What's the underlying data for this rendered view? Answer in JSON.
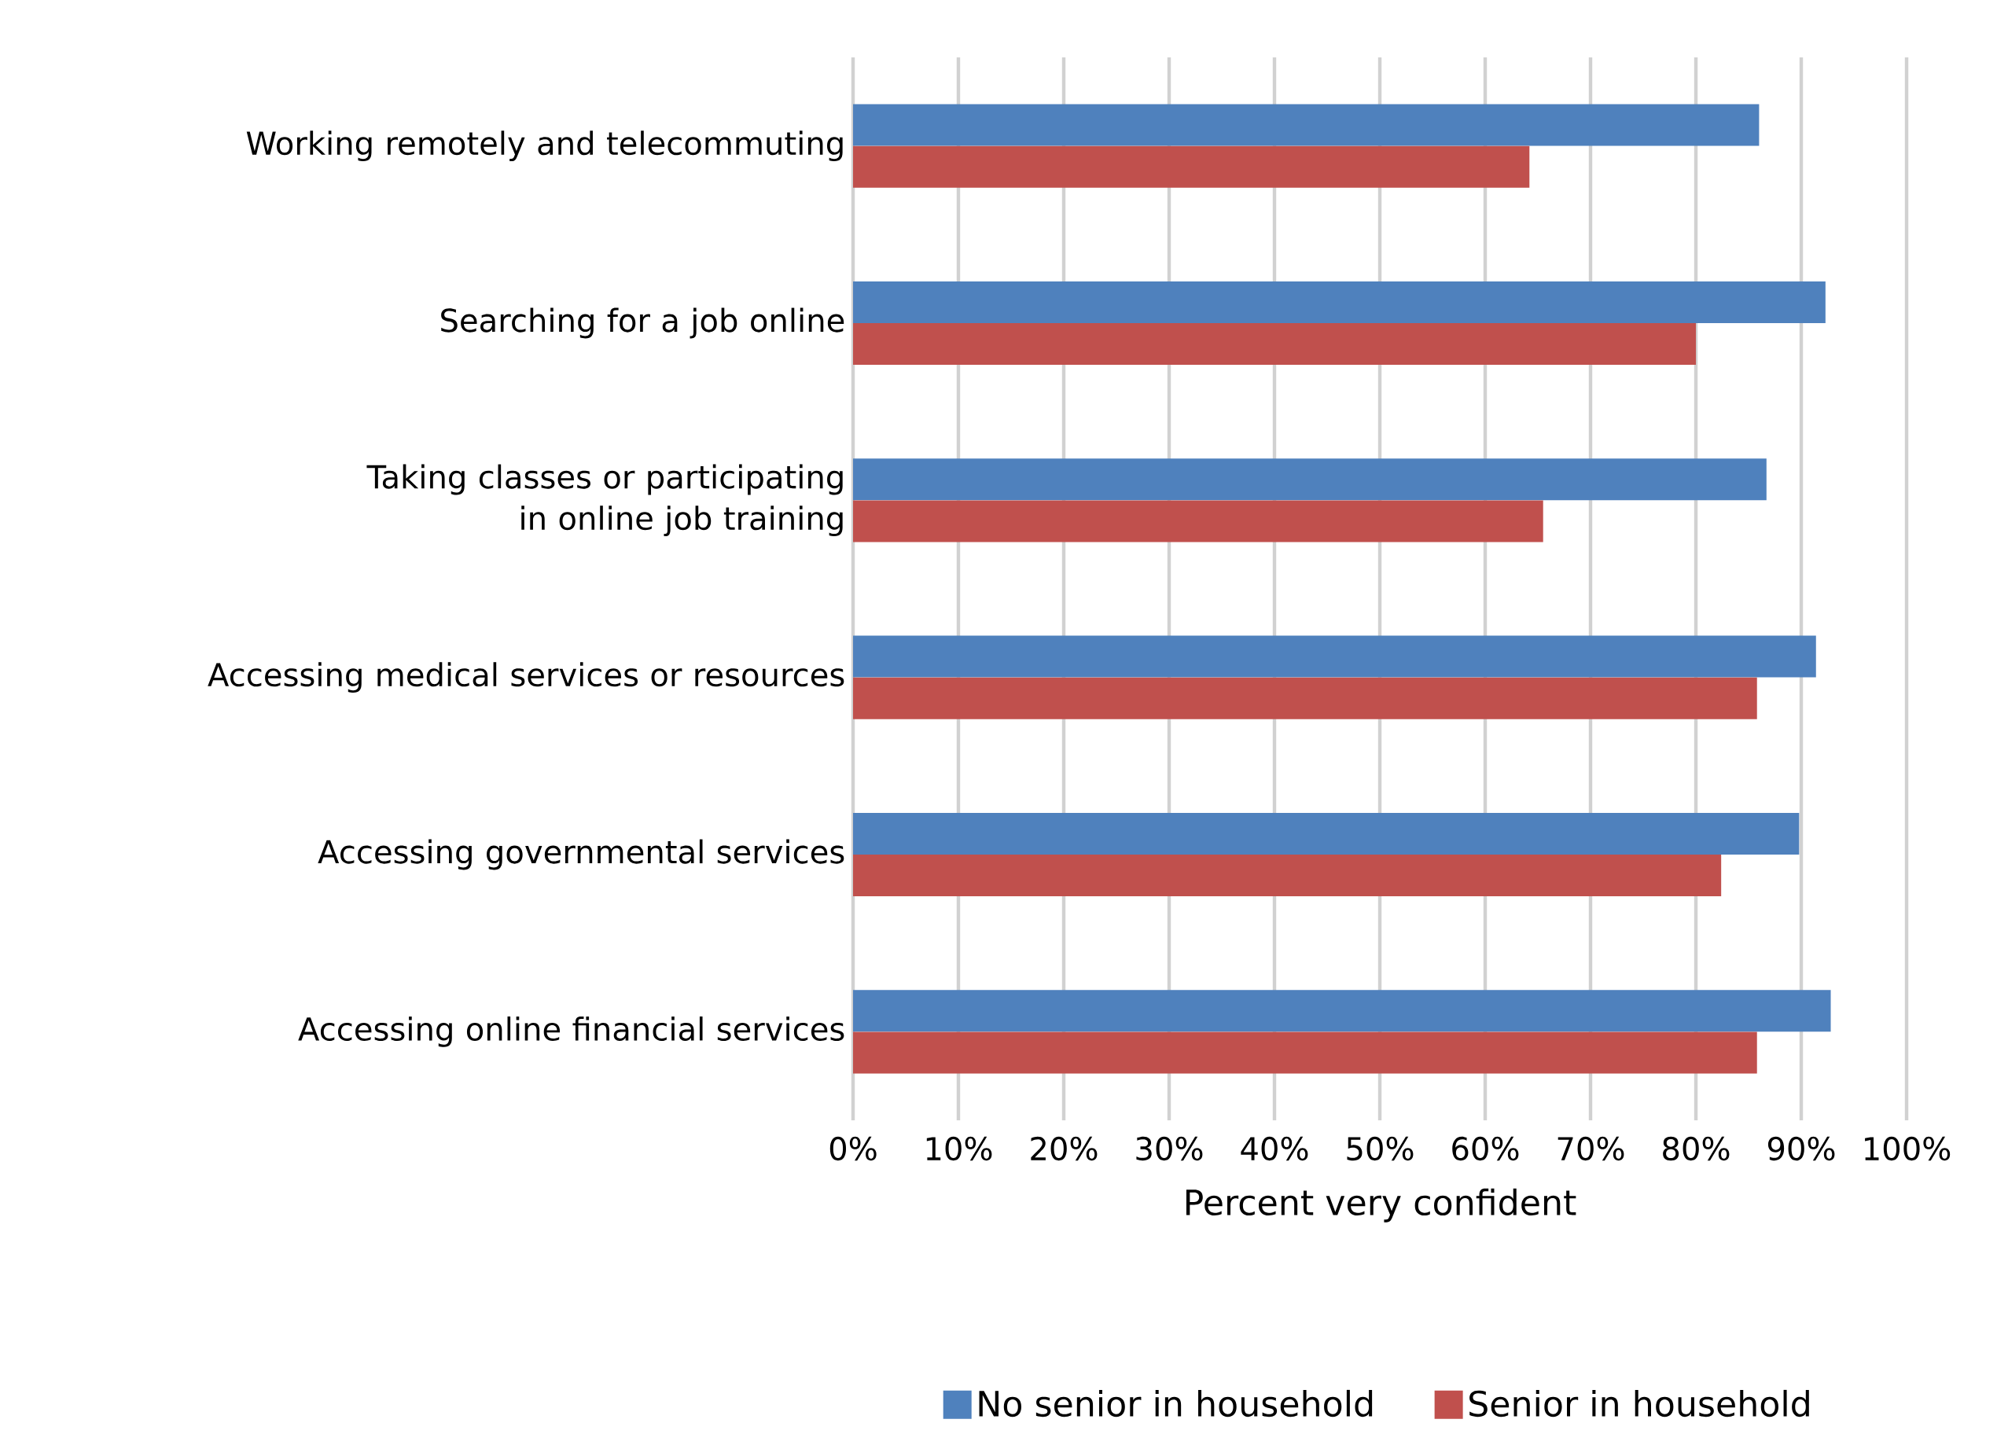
{
  "chart_data": {
    "type": "bar",
    "orientation": "horizontal",
    "categories": [
      "Working remotely and telecommuting",
      "Searching for a job online",
      "Taking classes or participating in online job training",
      "Accessing medical services or resources",
      "Accessing governmental services",
      "Accessing online financial services"
    ],
    "series": [
      {
        "name": "No senior in household",
        "color": "#4f81bd",
        "values": [
          86,
          92.3,
          86.7,
          91.4,
          89.8,
          92.8
        ]
      },
      {
        "name": "Senior in household",
        "color": "#c0504d",
        "values": [
          64.2,
          80,
          65.5,
          85.8,
          82.4,
          85.8
        ]
      }
    ],
    "xlabel": "Percent very confident",
    "xlim": [
      0,
      100
    ],
    "xticks": [
      {
        "value": 0,
        "label": "0%"
      },
      {
        "value": 10,
        "label": "10%"
      },
      {
        "value": 20,
        "label": "20%"
      },
      {
        "value": 30,
        "label": "30%"
      },
      {
        "value": 40,
        "label": "40%"
      },
      {
        "value": 50,
        "label": "50%"
      },
      {
        "value": 60,
        "label": "60%"
      },
      {
        "value": 70,
        "label": "70%"
      },
      {
        "value": 80,
        "label": "80%"
      },
      {
        "value": 90,
        "label": "90%"
      },
      {
        "value": 100,
        "label": "100%"
      }
    ],
    "grid": "x",
    "legend": "bottom"
  }
}
